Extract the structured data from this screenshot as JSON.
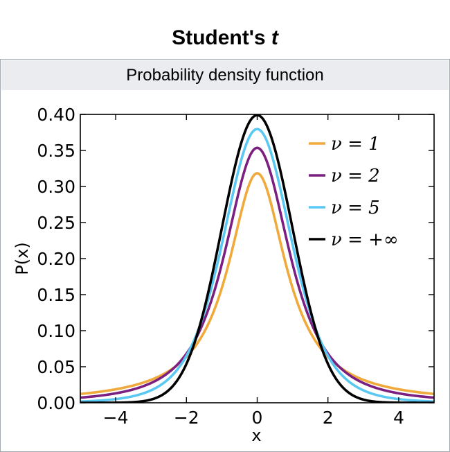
{
  "infobox": {
    "title_main": "Student's ",
    "title_italic": "t",
    "header": "Probability density function"
  },
  "chart_data": {
    "type": "line",
    "title": "",
    "xlabel": "x",
    "ylabel": "P(x)",
    "xlim": [
      -5,
      5
    ],
    "ylim": [
      0.0,
      0.4
    ],
    "xticks": [
      -4,
      -2,
      0,
      2,
      4
    ],
    "xtick_labels": [
      "−4",
      "−2",
      "0",
      "2",
      "4"
    ],
    "yticks": [
      0.0,
      0.05,
      0.1,
      0.15,
      0.2,
      0.25,
      0.3,
      0.35,
      0.4
    ],
    "ytick_labels": [
      "0.00",
      "0.05",
      "0.10",
      "0.15",
      "0.20",
      "0.25",
      "0.30",
      "0.35",
      "0.40"
    ],
    "grid": false,
    "legend_position": "top-right",
    "series": [
      {
        "name": "ν = 1",
        "nu": 1,
        "color": "#f0a93b"
      },
      {
        "name": "ν = 2",
        "nu": 2,
        "color": "#7b1f80"
      },
      {
        "name": "ν = 5",
        "nu": 5,
        "color": "#5ac8f3"
      },
      {
        "name": "ν = +∞",
        "nu": "inf",
        "color": "#000000"
      }
    ],
    "x": [
      -5.0,
      -4.5,
      -4.0,
      -3.5,
      -3.0,
      -2.5,
      -2.0,
      -1.5,
      -1.0,
      -0.5,
      0.0,
      0.5,
      1.0,
      1.5,
      2.0,
      2.5,
      3.0,
      3.5,
      4.0,
      4.5,
      5.0
    ]
  }
}
